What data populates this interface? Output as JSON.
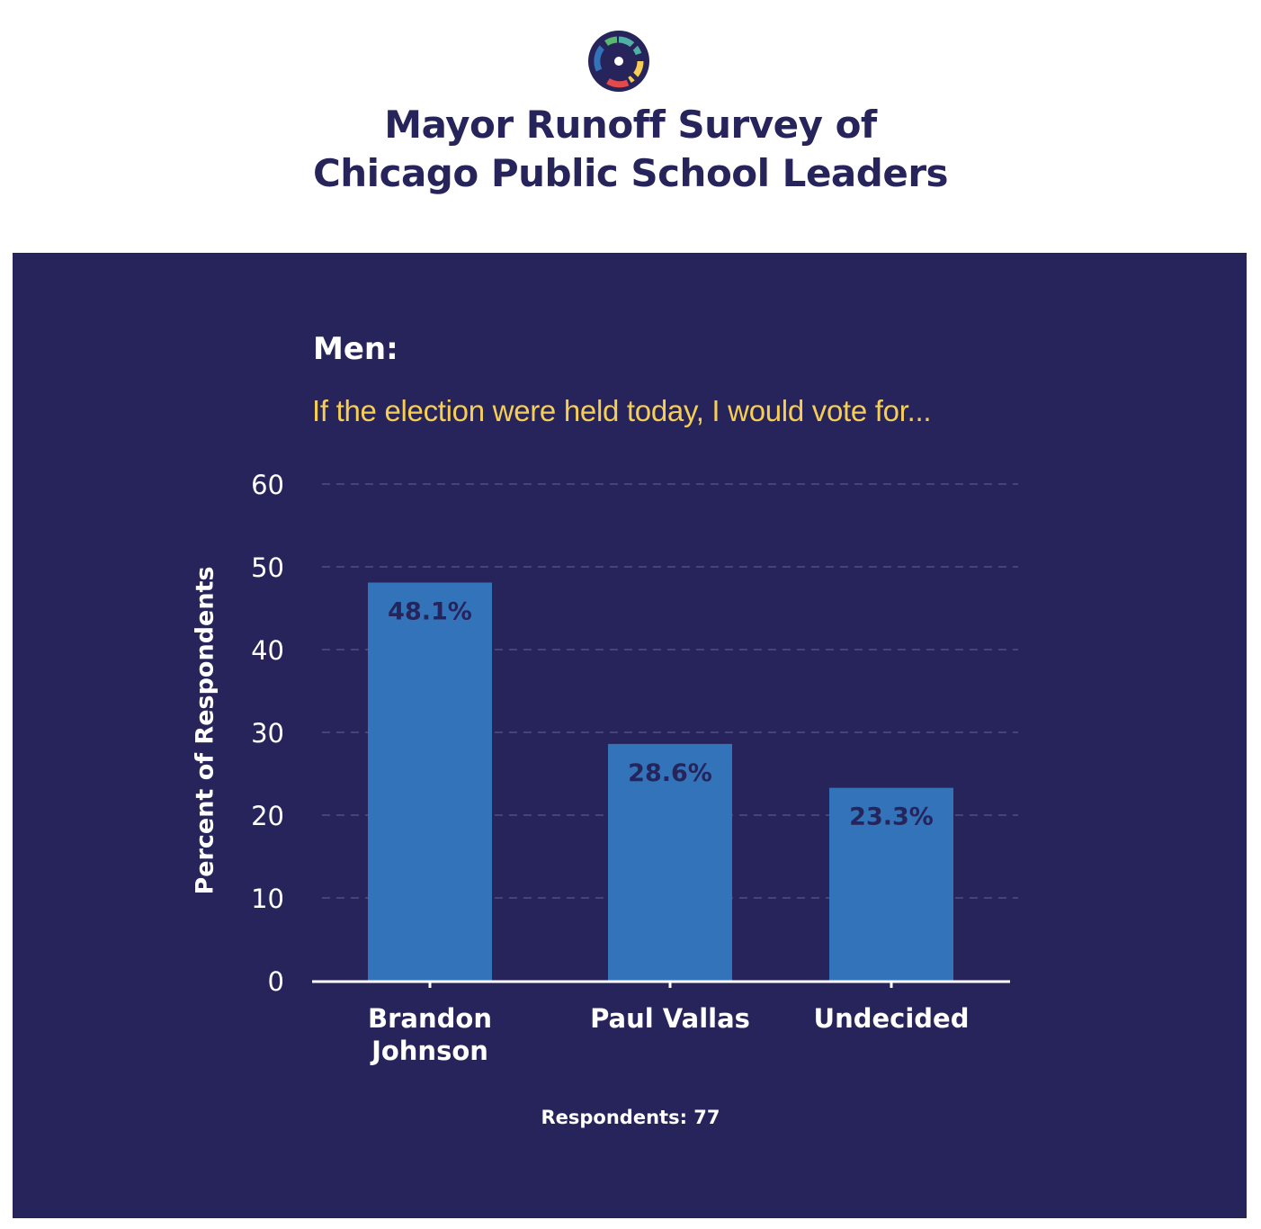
{
  "header": {
    "title_line1": "Mayor Runoff Survey of",
    "title_line2": "Chicago Public School Leaders",
    "logo_icon": "circular-compass-logo-icon"
  },
  "panel": {
    "heading": "Men:",
    "question": "If the election were held today, I would vote for...",
    "respondents": "Respondents: 77"
  },
  "colors": {
    "background": "#26245a",
    "bar": "#3373b9",
    "value_label": "#26245a",
    "question": "#f6cd55",
    "text": "#ffffff"
  },
  "chart_data": {
    "type": "bar",
    "categories": [
      "Brandon Johnson",
      "Paul Vallas",
      "Undecided"
    ],
    "category_lines": [
      [
        "Brandon",
        "Johnson"
      ],
      [
        "Paul Vallas"
      ],
      [
        "Undecided"
      ]
    ],
    "values": [
      48.1,
      28.6,
      23.3
    ],
    "value_labels": [
      "48.1%",
      "28.6%",
      "23.3%"
    ],
    "ylabel": "Percent of Respondents",
    "ylim": [
      0,
      60
    ],
    "yticks": [
      0,
      10,
      20,
      30,
      40,
      50,
      60
    ],
    "grid": true,
    "grid_style": "dashed"
  }
}
